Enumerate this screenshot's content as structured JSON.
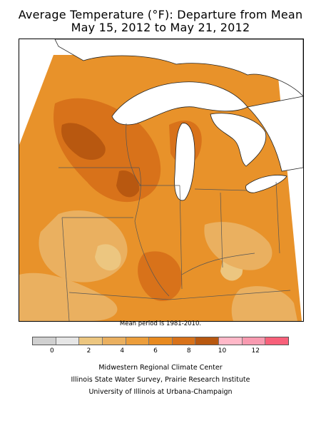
{
  "title": {
    "line1": "Average Temperature (°F): Departure from Mean",
    "line2": "May 15, 2012 to May 21, 2012"
  },
  "map": {
    "region": "Midwestern United States",
    "fills": {
      "lake": "#ffffff",
      "land_default": "#e8922a",
      "warm_4_6": "#e88a20",
      "warm_6_8": "#d8721a",
      "warm_8_10": "#b85810",
      "mild_2_4": "#eab060",
      "mild_0_2": "#ecc680"
    },
    "state_line_color": "#555555"
  },
  "mean_note": "Mean period is 1981-2010.",
  "legend": {
    "colors": [
      "#d0d0d0",
      "#e6e6e6",
      "#ecc680",
      "#eab060",
      "#ec9e3c",
      "#e88a20",
      "#d8721a",
      "#b85810",
      "#ffb8c8",
      "#f89ab0",
      "#f8607a"
    ],
    "ticks": [
      "0",
      "2",
      "4",
      "6",
      "8",
      "10",
      "12"
    ]
  },
  "credits": {
    "line1": "Midwestern Regional Climate Center",
    "line2": "Illinois State Water Survey, Prairie Research Institute",
    "line3": "University of Illinois at Urbana-Champaign"
  }
}
